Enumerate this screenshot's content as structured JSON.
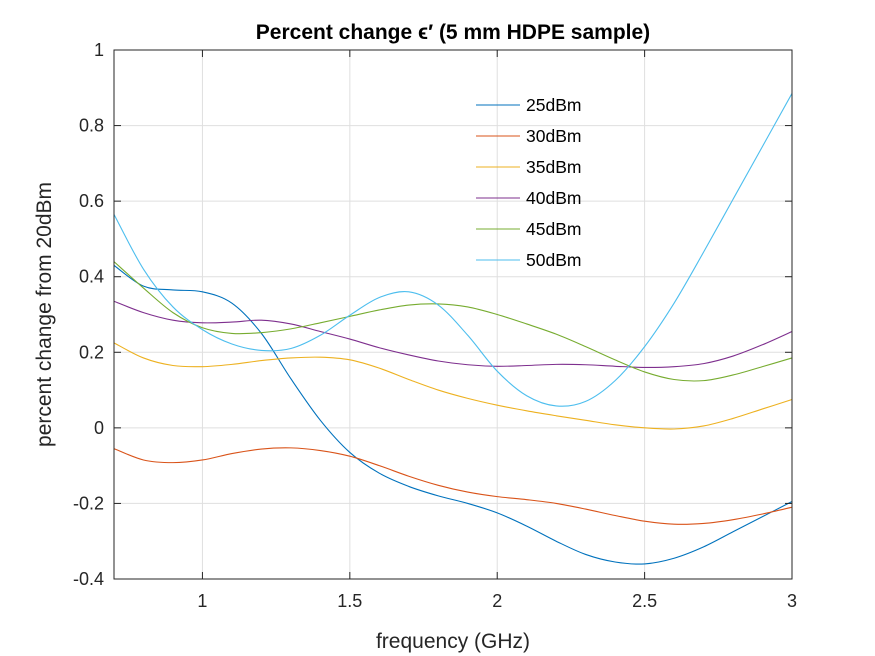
{
  "chart_data": {
    "type": "line",
    "title": "Percent change ϵ′ (5 mm HDPE sample)",
    "xlabel": "frequency (GHz)",
    "ylabel": "percent change from 20dBm",
    "xlim": [
      0.7,
      3
    ],
    "ylim": [
      -0.4,
      1
    ],
    "xticks": [
      1,
      1.5,
      2,
      2.5,
      3
    ],
    "xtick_labels": [
      "1",
      "1.5",
      "2",
      "2.5",
      "3"
    ],
    "yticks": [
      -0.4,
      -0.2,
      0,
      0.2,
      0.4,
      0.6,
      0.8,
      1
    ],
    "ytick_labels": [
      "-0.4",
      "-0.2",
      "0",
      "0.2",
      "0.4",
      "0.6",
      "0.8",
      "1"
    ],
    "grid": true,
    "legend_position": "top-right",
    "series": [
      {
        "name": "25dBm",
        "color": "#0072BD",
        "points": [
          [
            0.7,
            0.43
          ],
          [
            0.8,
            0.375
          ],
          [
            0.9,
            0.365
          ],
          [
            1.0,
            0.36
          ],
          [
            1.1,
            0.33
          ],
          [
            1.2,
            0.25
          ],
          [
            1.3,
            0.13
          ],
          [
            1.4,
            0.02
          ],
          [
            1.5,
            -0.065
          ],
          [
            1.6,
            -0.12
          ],
          [
            1.7,
            -0.155
          ],
          [
            1.8,
            -0.18
          ],
          [
            1.9,
            -0.2
          ],
          [
            2.0,
            -0.225
          ],
          [
            2.1,
            -0.26
          ],
          [
            2.2,
            -0.3
          ],
          [
            2.3,
            -0.335
          ],
          [
            2.4,
            -0.355
          ],
          [
            2.5,
            -0.36
          ],
          [
            2.6,
            -0.345
          ],
          [
            2.7,
            -0.315
          ],
          [
            2.8,
            -0.275
          ],
          [
            2.9,
            -0.235
          ],
          [
            3.0,
            -0.195
          ]
        ]
      },
      {
        "name": "30dBm",
        "color": "#D95319",
        "points": [
          [
            0.7,
            -0.055
          ],
          [
            0.8,
            -0.085
          ],
          [
            0.9,
            -0.092
          ],
          [
            1.0,
            -0.085
          ],
          [
            1.1,
            -0.068
          ],
          [
            1.2,
            -0.056
          ],
          [
            1.3,
            -0.053
          ],
          [
            1.4,
            -0.06
          ],
          [
            1.5,
            -0.075
          ],
          [
            1.6,
            -0.1
          ],
          [
            1.7,
            -0.128
          ],
          [
            1.8,
            -0.152
          ],
          [
            1.9,
            -0.17
          ],
          [
            2.0,
            -0.182
          ],
          [
            2.1,
            -0.19
          ],
          [
            2.2,
            -0.2
          ],
          [
            2.3,
            -0.215
          ],
          [
            2.4,
            -0.232
          ],
          [
            2.5,
            -0.247
          ],
          [
            2.6,
            -0.255
          ],
          [
            2.7,
            -0.253
          ],
          [
            2.8,
            -0.243
          ],
          [
            2.9,
            -0.228
          ],
          [
            3.0,
            -0.21
          ]
        ]
      },
      {
        "name": "35dBm",
        "color": "#EDB120",
        "points": [
          [
            0.7,
            0.225
          ],
          [
            0.8,
            0.185
          ],
          [
            0.9,
            0.165
          ],
          [
            1.0,
            0.162
          ],
          [
            1.1,
            0.168
          ],
          [
            1.2,
            0.178
          ],
          [
            1.3,
            0.185
          ],
          [
            1.4,
            0.187
          ],
          [
            1.5,
            0.18
          ],
          [
            1.6,
            0.158
          ],
          [
            1.7,
            0.128
          ],
          [
            1.8,
            0.1
          ],
          [
            1.9,
            0.078
          ],
          [
            2.0,
            0.06
          ],
          [
            2.1,
            0.045
          ],
          [
            2.2,
            0.032
          ],
          [
            2.3,
            0.02
          ],
          [
            2.4,
            0.008
          ],
          [
            2.5,
            0.0
          ],
          [
            2.6,
            -0.003
          ],
          [
            2.7,
            0.005
          ],
          [
            2.8,
            0.025
          ],
          [
            2.9,
            0.05
          ],
          [
            3.0,
            0.075
          ]
        ]
      },
      {
        "name": "40dBm",
        "color": "#7E2F8E",
        "points": [
          [
            0.7,
            0.335
          ],
          [
            0.8,
            0.305
          ],
          [
            0.9,
            0.285
          ],
          [
            1.0,
            0.278
          ],
          [
            1.1,
            0.28
          ],
          [
            1.2,
            0.285
          ],
          [
            1.3,
            0.275
          ],
          [
            1.4,
            0.255
          ],
          [
            1.5,
            0.235
          ],
          [
            1.6,
            0.212
          ],
          [
            1.7,
            0.193
          ],
          [
            1.8,
            0.177
          ],
          [
            1.9,
            0.167
          ],
          [
            2.0,
            0.163
          ],
          [
            2.1,
            0.165
          ],
          [
            2.2,
            0.168
          ],
          [
            2.3,
            0.167
          ],
          [
            2.4,
            0.163
          ],
          [
            2.5,
            0.16
          ],
          [
            2.6,
            0.162
          ],
          [
            2.7,
            0.17
          ],
          [
            2.8,
            0.19
          ],
          [
            2.9,
            0.22
          ],
          [
            3.0,
            0.255
          ]
        ]
      },
      {
        "name": "45dBm",
        "color": "#77AC30",
        "points": [
          [
            0.7,
            0.44
          ],
          [
            0.8,
            0.37
          ],
          [
            0.9,
            0.305
          ],
          [
            1.0,
            0.265
          ],
          [
            1.1,
            0.25
          ],
          [
            1.2,
            0.252
          ],
          [
            1.3,
            0.262
          ],
          [
            1.4,
            0.278
          ],
          [
            1.5,
            0.295
          ],
          [
            1.6,
            0.312
          ],
          [
            1.7,
            0.325
          ],
          [
            1.8,
            0.328
          ],
          [
            1.9,
            0.32
          ],
          [
            2.0,
            0.3
          ],
          [
            2.1,
            0.275
          ],
          [
            2.2,
            0.248
          ],
          [
            2.3,
            0.215
          ],
          [
            2.4,
            0.18
          ],
          [
            2.5,
            0.148
          ],
          [
            2.6,
            0.128
          ],
          [
            2.7,
            0.125
          ],
          [
            2.8,
            0.14
          ],
          [
            2.9,
            0.162
          ],
          [
            3.0,
            0.185
          ]
        ]
      },
      {
        "name": "50dBm",
        "color": "#4DBEEE",
        "points": [
          [
            0.7,
            0.565
          ],
          [
            0.8,
            0.42
          ],
          [
            0.9,
            0.32
          ],
          [
            1.0,
            0.26
          ],
          [
            1.1,
            0.222
          ],
          [
            1.2,
            0.205
          ],
          [
            1.3,
            0.21
          ],
          [
            1.4,
            0.245
          ],
          [
            1.5,
            0.298
          ],
          [
            1.6,
            0.345
          ],
          [
            1.7,
            0.36
          ],
          [
            1.8,
            0.325
          ],
          [
            1.9,
            0.245
          ],
          [
            2.0,
            0.15
          ],
          [
            2.1,
            0.085
          ],
          [
            2.2,
            0.058
          ],
          [
            2.3,
            0.07
          ],
          [
            2.4,
            0.125
          ],
          [
            2.5,
            0.215
          ],
          [
            2.6,
            0.33
          ],
          [
            2.7,
            0.465
          ],
          [
            2.8,
            0.605
          ],
          [
            2.9,
            0.745
          ],
          [
            3.0,
            0.885
          ]
        ]
      }
    ]
  }
}
